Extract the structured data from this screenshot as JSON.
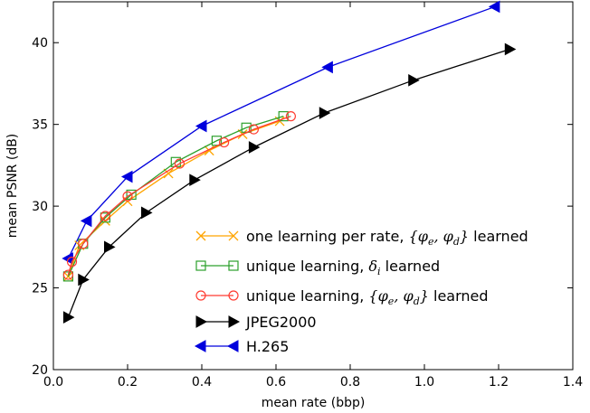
{
  "chart_data": {
    "type": "line",
    "title": "",
    "xlabel": "mean rate (bbp)",
    "ylabel": "mean PSNR (dB)",
    "xlim": [
      0.0,
      1.4
    ],
    "ylim": [
      20,
      42.5
    ],
    "xticks": [
      0.0,
      0.2,
      0.4,
      0.6,
      0.8,
      1.0,
      1.2,
      1.4
    ],
    "xtick_labels": [
      "0.0",
      "0.2",
      "0.4",
      "0.6",
      "0.8",
      "1.0",
      "1.2",
      "1.4"
    ],
    "yticks": [
      20,
      25,
      30,
      35,
      40
    ],
    "ytick_labels": [
      "20",
      "25",
      "30",
      "35",
      "40"
    ],
    "grid": false,
    "legend_position": "lower-right",
    "series": [
      {
        "name": "one learning per rate, {φe, φd} learned",
        "color": "#ffa500",
        "marker": "x",
        "x": [
          0.04,
          0.07,
          0.14,
          0.2,
          0.31,
          0.42,
          0.51,
          0.61
        ],
        "y": [
          25.7,
          27.6,
          29.1,
          30.3,
          32.0,
          33.4,
          34.4,
          35.2
        ]
      },
      {
        "name": "unique learning, δi learned",
        "color": "#2ca02c",
        "marker": "square",
        "x": [
          0.04,
          0.08,
          0.14,
          0.21,
          0.33,
          0.44,
          0.52,
          0.62
        ],
        "y": [
          25.7,
          27.7,
          29.3,
          30.7,
          32.7,
          34.0,
          34.8,
          35.5
        ]
      },
      {
        "name": "unique learning, {φe, φd} learned",
        "color": "#ff3b30",
        "marker": "circle",
        "x": [
          0.04,
          0.05,
          0.08,
          0.14,
          0.2,
          0.34,
          0.46,
          0.54,
          0.64
        ],
        "y": [
          25.8,
          26.6,
          27.7,
          29.4,
          30.6,
          32.6,
          33.9,
          34.7,
          35.5
        ]
      },
      {
        "name": "JPEG2000",
        "color": "#000000",
        "marker": "triangle-right",
        "x": [
          0.04,
          0.08,
          0.15,
          0.25,
          0.38,
          0.54,
          0.73,
          0.97,
          1.23
        ],
        "y": [
          23.2,
          25.5,
          27.5,
          29.6,
          31.6,
          33.6,
          35.7,
          37.7,
          39.6
        ]
      },
      {
        "name": "H.265",
        "color": "#0000dd",
        "marker": "triangle-left",
        "x": [
          0.04,
          0.09,
          0.2,
          0.4,
          0.74,
          1.19
        ],
        "y": [
          26.8,
          29.1,
          31.8,
          34.9,
          38.5,
          42.2
        ]
      }
    ]
  }
}
